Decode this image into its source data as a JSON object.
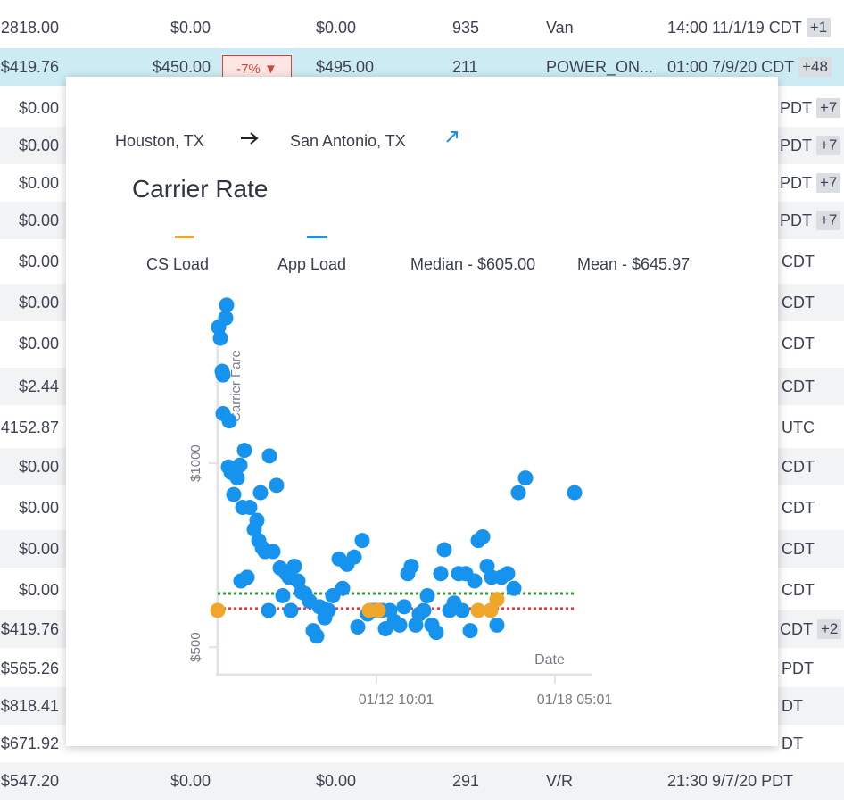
{
  "table": {
    "rows": [
      {
        "fare": "2818.00",
        "rate": "$0.00",
        "target": "$0.00",
        "miles": "935",
        "equipment": "Van",
        "time": "14:00 11/1/19 CDT",
        "badge": "+1"
      },
      {
        "fare": "$419.76",
        "rate": "$450.00",
        "delta": "-7% ▼",
        "target": "$495.00",
        "miles": "211",
        "equipment": "POWER_ON...",
        "time": "01:00 7/9/20 CDT",
        "badge": "+48"
      },
      {
        "fare": "$0.00",
        "time": "PDT",
        "badge": "+7"
      },
      {
        "fare": "$0.00",
        "time": "PDT",
        "badge": "+7"
      },
      {
        "fare": "$0.00",
        "time": "PDT",
        "badge": "+7"
      },
      {
        "fare": "$0.00",
        "time": "PDT",
        "badge": "+7"
      },
      {
        "fare": "$0.00",
        "time": "CDT"
      },
      {
        "fare": "$0.00",
        "time": "CDT"
      },
      {
        "fare": "$0.00",
        "time": "CDT"
      },
      {
        "fare": "$2.44",
        "time": "CDT"
      },
      {
        "fare": "4152.87",
        "time": "UTC"
      },
      {
        "fare": "$0.00",
        "time": "CDT"
      },
      {
        "fare": "$0.00",
        "time": "CDT"
      },
      {
        "fare": "$0.00",
        "time": "CDT"
      },
      {
        "fare": "$0.00",
        "time": "CDT"
      },
      {
        "fare": "$419.76",
        "time": "CDT",
        "badge": "+2"
      },
      {
        "fare": "$565.26",
        "time": "PDT"
      },
      {
        "fare": "$818.41",
        "time": "DT"
      },
      {
        "fare": "$671.92",
        "time": "DT"
      },
      {
        "fare": "$547.20",
        "rate": "$0.00",
        "target": "$0.00",
        "miles": "291",
        "equipment": "V/R",
        "time": "21:30 9/7/20 PDT"
      }
    ]
  },
  "popup": {
    "origin": "Houston, TX",
    "destination": "San Antonio, TX",
    "arrow_icon": "arrow-right-icon",
    "link_icon": "external-link-icon",
    "title": "Carrier Rate",
    "legend": {
      "cs_load": "CS Load",
      "app_load": "App Load",
      "median": "Median - $605.00",
      "mean": "Mean - $645.97"
    },
    "colors": {
      "cs_load": "#f0a62a",
      "app_load": "#1693ef",
      "median": "#e03b3b",
      "mean": "#2e9932"
    }
  },
  "chart_data": {
    "type": "scatter",
    "ylabel": "Carrier Fare",
    "xlabel": "Date",
    "y_ticks": [
      "$500",
      "$1000"
    ],
    "x_ticks": [
      "01/12 10:01",
      "01/18 05:01"
    ],
    "median": 605,
    "mean": 645.97,
    "series": [
      {
        "name": "App Load",
        "color": "#1693ef",
        "points": [
          [
            0.1,
            1370
          ],
          [
            0.3,
            1340
          ],
          [
            0.6,
            1240
          ],
          [
            0.9,
            1395
          ],
          [
            1.0,
            1430
          ],
          [
            0.5,
            1250
          ],
          [
            0.6,
            1135
          ],
          [
            1.2,
            990
          ],
          [
            1.3,
            1115
          ],
          [
            1.5,
            975
          ],
          [
            1.8,
            915
          ],
          [
            2.2,
            960
          ],
          [
            2.5,
            995
          ],
          [
            2.8,
            880
          ],
          [
            3.0,
            1035
          ],
          [
            3.6,
            880
          ],
          [
            4.4,
            845
          ],
          [
            4.8,
            920
          ],
          [
            4.1,
            820
          ],
          [
            4.6,
            790
          ],
          [
            5.0,
            770
          ],
          [
            5.3,
            760
          ],
          [
            5.8,
            1020
          ],
          [
            6.2,
            760
          ],
          [
            6.6,
            940
          ],
          [
            7.0,
            715
          ],
          [
            7.3,
            640
          ],
          [
            7.7,
            700
          ],
          [
            8.2,
            600
          ],
          [
            8.6,
            720
          ],
          [
            9.0,
            680
          ],
          [
            9.4,
            650
          ],
          [
            9.8,
            645
          ],
          [
            10.3,
            625
          ],
          [
            10.7,
            545
          ],
          [
            11.1,
            530
          ],
          [
            11.4,
            610
          ],
          [
            11.8,
            605
          ],
          [
            12.0,
            580
          ],
          [
            12.4,
            600
          ],
          [
            12.9,
            640
          ],
          [
            13.6,
            740
          ],
          [
            14.0,
            660
          ],
          [
            14.5,
            725
          ],
          [
            15.3,
            745
          ],
          [
            15.7,
            555
          ],
          [
            16.2,
            790
          ],
          [
            16.8,
            590
          ],
          [
            17.2,
            600
          ],
          [
            17.7,
            600
          ],
          [
            18.0,
            600
          ],
          [
            18.4,
            600
          ],
          [
            18.8,
            550
          ],
          [
            19.3,
            600
          ],
          [
            19.8,
            570
          ],
          [
            20.4,
            560
          ],
          [
            20.9,
            610
          ],
          [
            21.3,
            700
          ],
          [
            21.7,
            720
          ],
          [
            22.2,
            560
          ],
          [
            22.6,
            590
          ],
          [
            23.1,
            600
          ],
          [
            23.5,
            640
          ],
          [
            24.0,
            560
          ],
          [
            24.5,
            540
          ],
          [
            25.0,
            700
          ],
          [
            25.4,
            765
          ],
          [
            26.0,
            600
          ],
          [
            26.5,
            620
          ],
          [
            27.0,
            700
          ],
          [
            27.4,
            600
          ],
          [
            27.8,
            700
          ],
          [
            28.3,
            545
          ],
          [
            28.8,
            680
          ],
          [
            29.2,
            790
          ],
          [
            29.7,
            800
          ],
          [
            30.2,
            720
          ],
          [
            30.7,
            690
          ],
          [
            31.3,
            560
          ],
          [
            31.8,
            690
          ],
          [
            32.5,
            700
          ],
          [
            33.2,
            660
          ],
          [
            33.7,
            920
          ],
          [
            34.5,
            960
          ],
          [
            40.0,
            920
          ],
          [
            2.6,
            680
          ],
          [
            3.3,
            690
          ],
          [
            5.7,
            600
          ],
          [
            8.0,
            690
          ]
        ]
      },
      {
        "name": "CS Load",
        "color": "#f0a62a",
        "points": [
          [
            0.0,
            600
          ],
          [
            17.0,
            600
          ],
          [
            18.0,
            600
          ],
          [
            29.2,
            600
          ],
          [
            30.6,
            600
          ],
          [
            31.3,
            630
          ]
        ]
      }
    ]
  }
}
